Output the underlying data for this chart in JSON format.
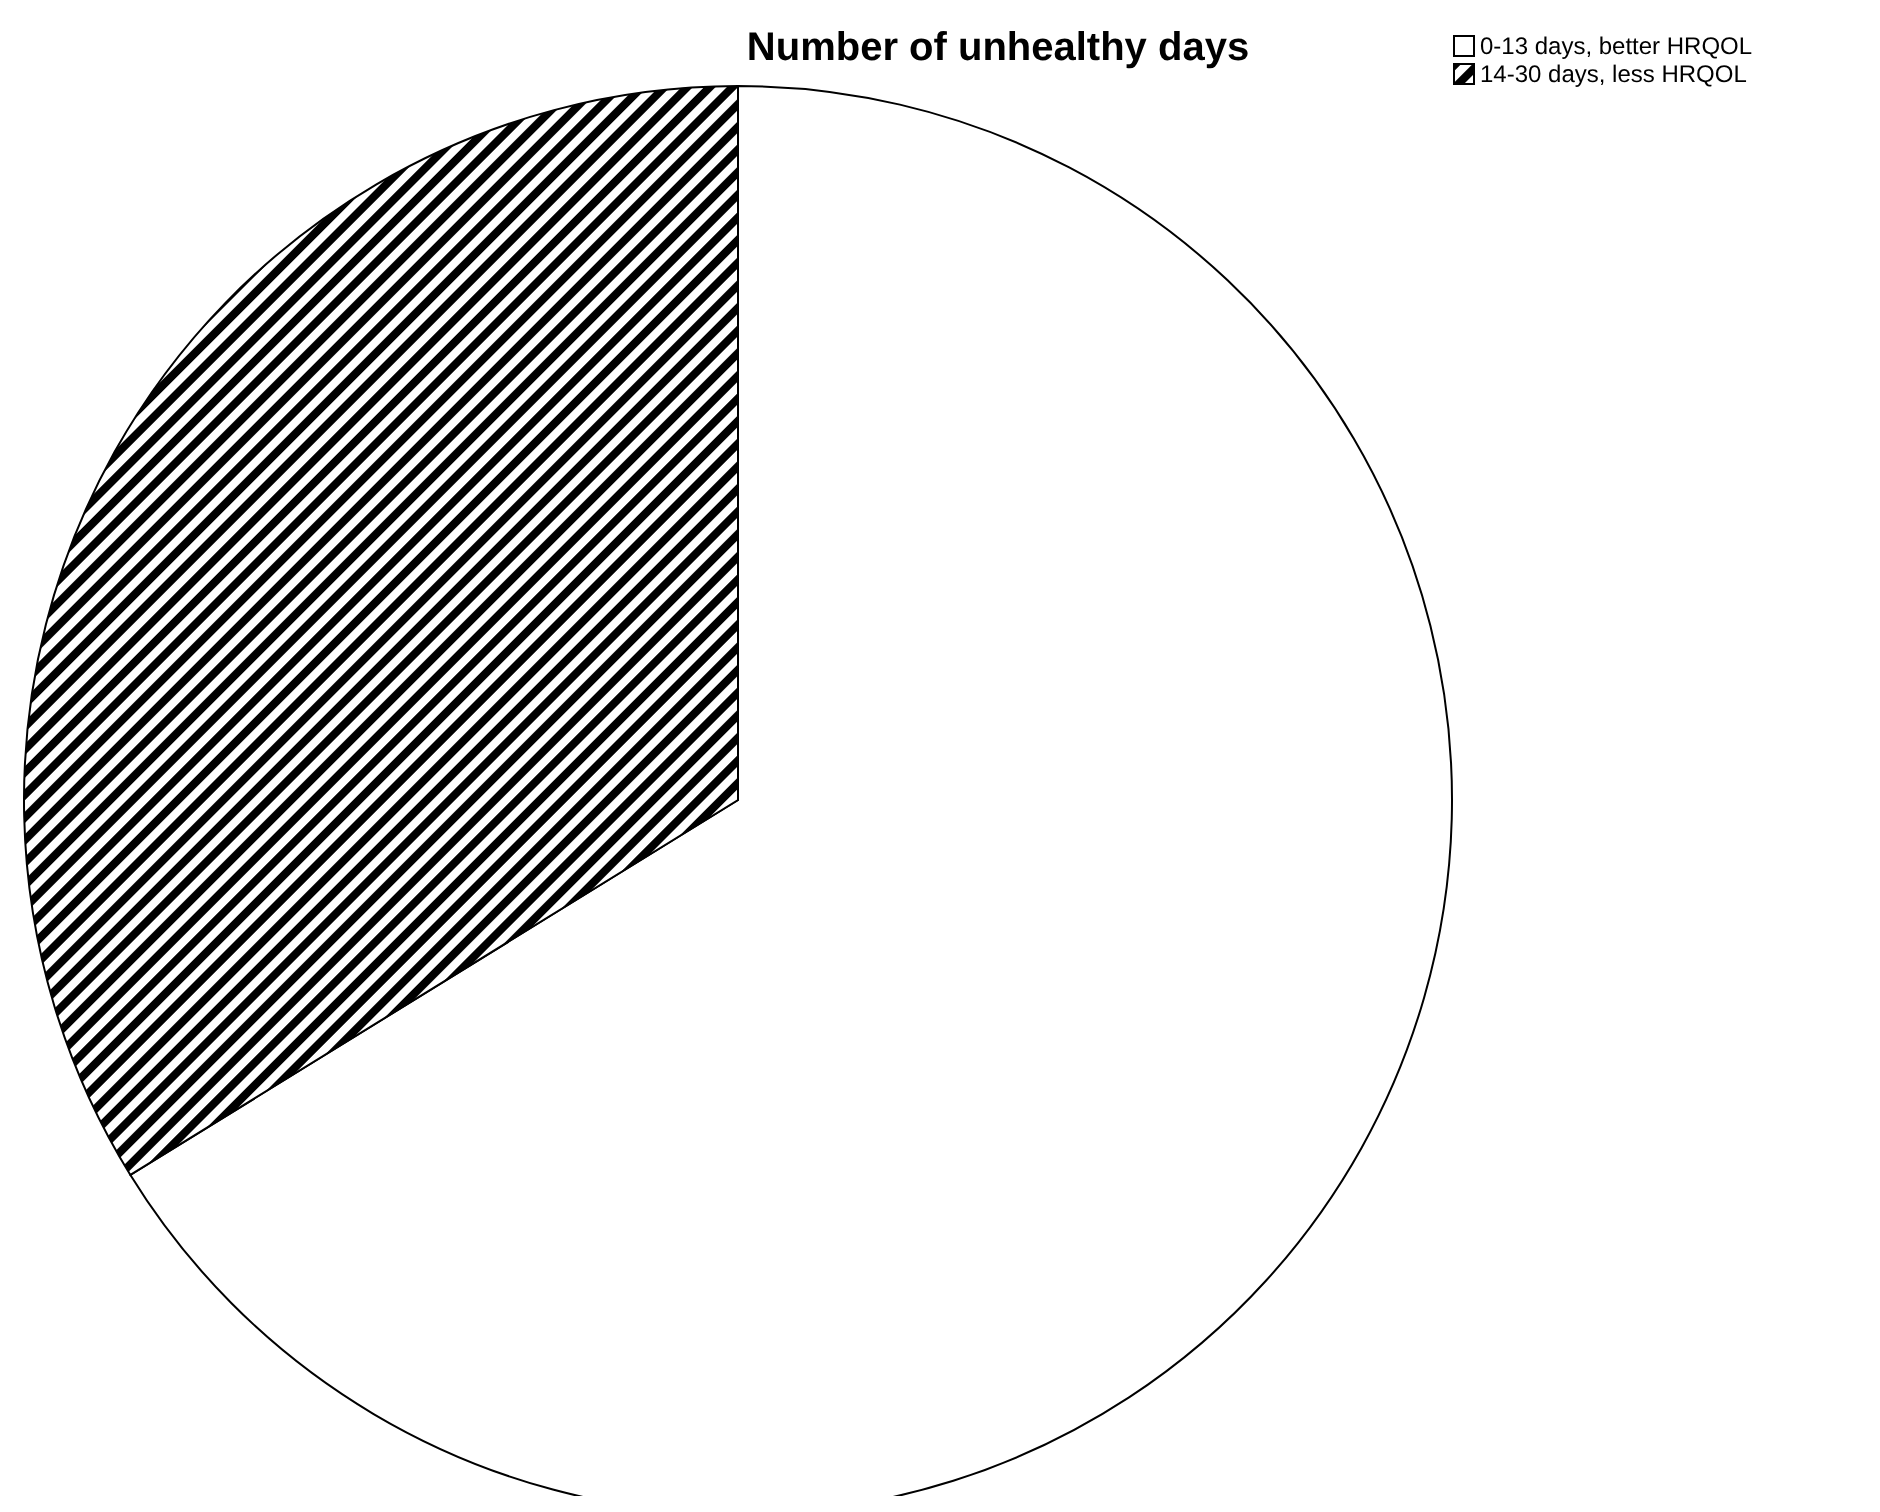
{
  "chart_data": {
    "type": "pie",
    "title": "Number of unhealthy days",
    "categories": [
      "0-13 days, better HRQOL",
      "14-30 days, less HRQOL"
    ],
    "values": [
      66.2,
      33.8
    ],
    "colors": [
      "#ffffff",
      "#000000"
    ],
    "legend": "top right"
  }
}
